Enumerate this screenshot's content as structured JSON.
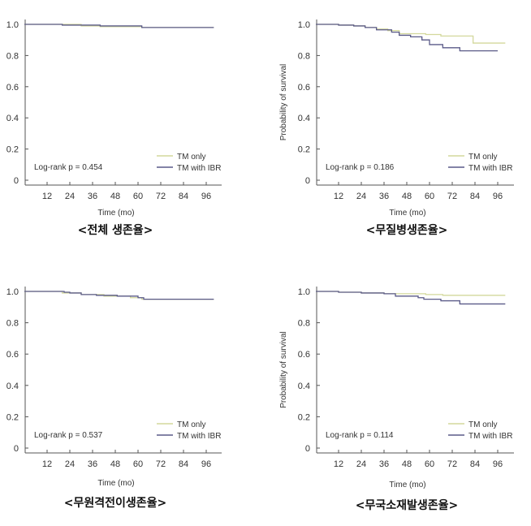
{
  "colors": {
    "tm_only": "#d3d89c",
    "tm_ibr": "#5a5a88",
    "axis": "#555555"
  },
  "chart_data": [
    {
      "type": "line",
      "step": true,
      "caption": "<전체 생존율>",
      "xlabel": "Time (mo)",
      "ylabel": "",
      "xticks": [
        12,
        24,
        36,
        48,
        60,
        72,
        84,
        96
      ],
      "yticks": [
        "0",
        "0.2",
        "0.4",
        "0.6",
        "0.8",
        "1.0"
      ],
      "xlim": [
        0,
        104
      ],
      "ylim": [
        0,
        1
      ],
      "annotation": "Log-rank p = 0.454",
      "legend": [
        "TM only",
        "TM with IBR"
      ],
      "legend_position": "bottom-right",
      "series": [
        {
          "name": "TM only",
          "points": [
            [
              0,
              1
            ],
            [
              30,
              0.99
            ],
            [
              40,
              0.985
            ],
            [
              62,
              0.98
            ],
            [
              100,
              0.98
            ]
          ]
        },
        {
          "name": "TM with IBR",
          "points": [
            [
              0,
              1
            ],
            [
              20,
              0.995
            ],
            [
              40,
              0.99
            ],
            [
              62,
              0.98
            ],
            [
              100,
              0.98
            ]
          ]
        }
      ]
    },
    {
      "type": "line",
      "step": true,
      "caption": "<무질병생존율>",
      "xlabel": "Time (mo)",
      "ylabel": "Probability of survival",
      "xticks": [
        12,
        24,
        36,
        48,
        60,
        72,
        84,
        96
      ],
      "yticks": [
        "0",
        "0.2",
        "0.4",
        "0.6",
        "0.8",
        "1.0"
      ],
      "xlim": [
        0,
        104
      ],
      "ylim": [
        0,
        1
      ],
      "annotation": "Log-rank p = 0.186",
      "legend": [
        "TM only",
        "TM with IBR"
      ],
      "legend_position": "bottom-right",
      "series": [
        {
          "name": "TM only",
          "points": [
            [
              0,
              1
            ],
            [
              12,
              0.995
            ],
            [
              20,
              0.99
            ],
            [
              26,
              0.98
            ],
            [
              32,
              0.97
            ],
            [
              38,
              0.96
            ],
            [
              44,
              0.94
            ],
            [
              58,
              0.935
            ],
            [
              66,
              0.925
            ],
            [
              83,
              0.88
            ],
            [
              100,
              0.88
            ]
          ]
        },
        {
          "name": "TM with IBR",
          "points": [
            [
              0,
              1
            ],
            [
              12,
              0.995
            ],
            [
              20,
              0.99
            ],
            [
              26,
              0.98
            ],
            [
              32,
              0.965
            ],
            [
              40,
              0.95
            ],
            [
              44,
              0.93
            ],
            [
              50,
              0.92
            ],
            [
              56,
              0.9
            ],
            [
              60,
              0.87
            ],
            [
              67,
              0.85
            ],
            [
              76,
              0.83
            ],
            [
              96,
              0.83
            ]
          ]
        }
      ]
    },
    {
      "type": "line",
      "step": true,
      "caption": "<무원격전이생존율>",
      "xlabel": "Time (mo)",
      "ylabel": "",
      "xticks": [
        12,
        24,
        36,
        48,
        60,
        72,
        84,
        96
      ],
      "yticks": [
        "0",
        "0.2",
        "0.4",
        "0.6",
        "0.8",
        "1.0"
      ],
      "xlim": [
        0,
        104
      ],
      "ylim": [
        0,
        1
      ],
      "annotation": "Log-rank p = 0.537",
      "legend": [
        "TM only",
        "TM with IBR"
      ],
      "legend_position": "bottom-right",
      "series": [
        {
          "name": "TM only",
          "points": [
            [
              0,
              1
            ],
            [
              20,
              0.99
            ],
            [
              30,
              0.98
            ],
            [
              42,
              0.97
            ],
            [
              56,
              0.96
            ],
            [
              62,
              0.95
            ],
            [
              100,
              0.95
            ]
          ]
        },
        {
          "name": "TM with IBR",
          "points": [
            [
              0,
              1
            ],
            [
              21,
              0.995
            ],
            [
              24,
              0.99
            ],
            [
              30,
              0.98
            ],
            [
              38,
              0.975
            ],
            [
              49,
              0.97
            ],
            [
              60,
              0.96
            ],
            [
              63,
              0.95
            ],
            [
              100,
              0.95
            ]
          ]
        }
      ]
    },
    {
      "type": "line",
      "step": true,
      "caption": "<무국소재발생존율>",
      "xlabel": "Time (mo)",
      "ylabel": "Probability of survival",
      "xticks": [
        12,
        24,
        36,
        48,
        60,
        72,
        84,
        96
      ],
      "yticks": [
        "0",
        "0.2",
        "0.4",
        "0.6",
        "0.8",
        "1.0"
      ],
      "xlim": [
        0,
        104
      ],
      "ylim": [
        0,
        1
      ],
      "annotation": "Log-rank p = 0.114",
      "legend": [
        "TM only",
        "TM with IBR"
      ],
      "legend_position": "bottom-right",
      "series": [
        {
          "name": "TM only",
          "points": [
            [
              0,
              1
            ],
            [
              12,
              0.995
            ],
            [
              24,
              0.99
            ],
            [
              36,
              0.985
            ],
            [
              58,
              0.98
            ],
            [
              67,
              0.975
            ],
            [
              100,
              0.975
            ]
          ]
        },
        {
          "name": "TM with IBR",
          "points": [
            [
              0,
              1
            ],
            [
              12,
              0.995
            ],
            [
              24,
              0.99
            ],
            [
              36,
              0.985
            ],
            [
              42,
              0.97
            ],
            [
              54,
              0.96
            ],
            [
              57,
              0.95
            ],
            [
              66,
              0.94
            ],
            [
              76,
              0.92
            ],
            [
              100,
              0.92
            ]
          ]
        }
      ]
    }
  ]
}
